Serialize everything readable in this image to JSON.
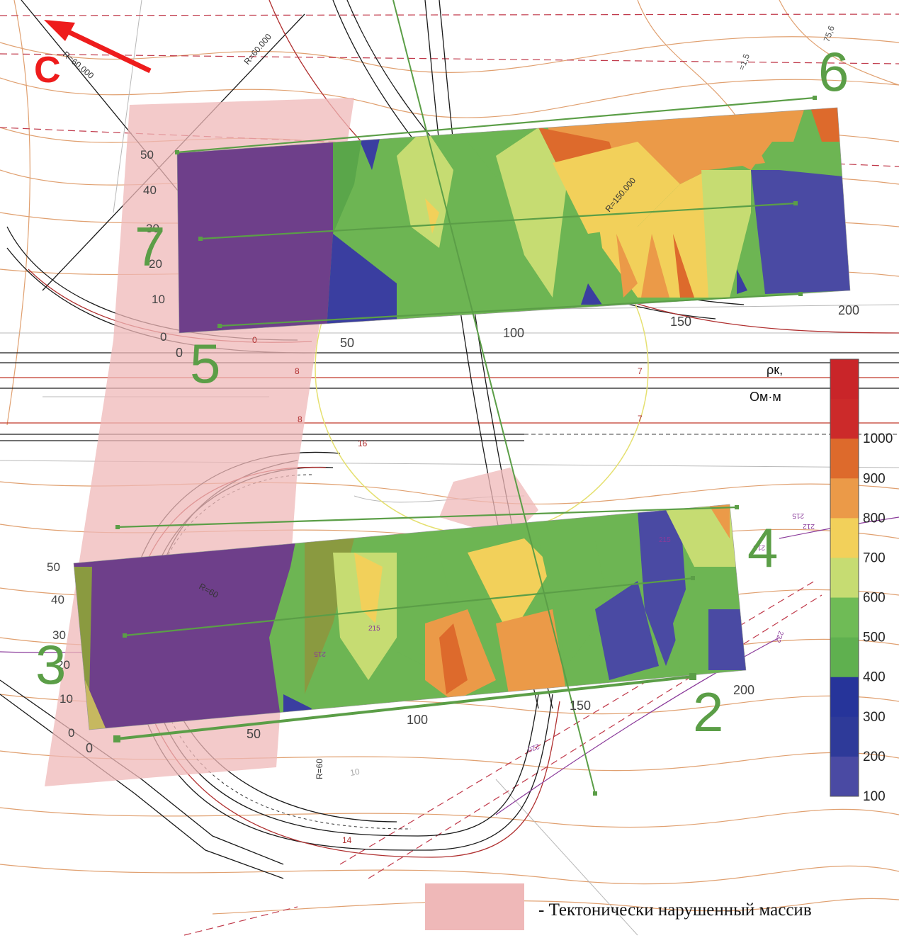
{
  "north_label": "С",
  "profile_labels": [
    "2",
    "3",
    "4",
    "5",
    "6",
    "7"
  ],
  "upper_block": {
    "y_ticks": [
      "0",
      "10",
      "20",
      "30",
      "40",
      "50"
    ],
    "x_ticks": [
      "0",
      "50",
      "100",
      "150",
      "200"
    ]
  },
  "lower_block": {
    "y_ticks": [
      "0",
      "10",
      "20",
      "30",
      "40",
      "50"
    ],
    "x_ticks": [
      "0",
      "50",
      "100",
      "150",
      "200"
    ]
  },
  "legend": {
    "title_line1": "ρк,",
    "title_line2": "Ом·м",
    "levels": [
      "100",
      "200",
      "300",
      "400",
      "500",
      "600",
      "700",
      "800",
      "900",
      "1000"
    ],
    "colors": [
      "#4a4aa3",
      "#2e3a99",
      "#26349a",
      "#5fb04f",
      "#6fbb56",
      "#c6dc72",
      "#f2d05a",
      "#eb9a48",
      "#dd6a2c",
      "#cc2a2a",
      "#c92529"
    ]
  },
  "bottom_legend": {
    "label": "- Тектонически нарушенный массив",
    "color": "#efb8b8"
  },
  "map_annotations": [
    "R=60.000",
    "R=60.000",
    "R=150.000",
    "R=60",
    "R=60",
    "75,6",
    "=1,5",
    "215",
    "215",
    "215",
    "220",
    "222",
    "212",
    "213",
    "215",
    "8",
    "8",
    "7",
    "7",
    "16",
    "14",
    "0",
    "10"
  ]
}
